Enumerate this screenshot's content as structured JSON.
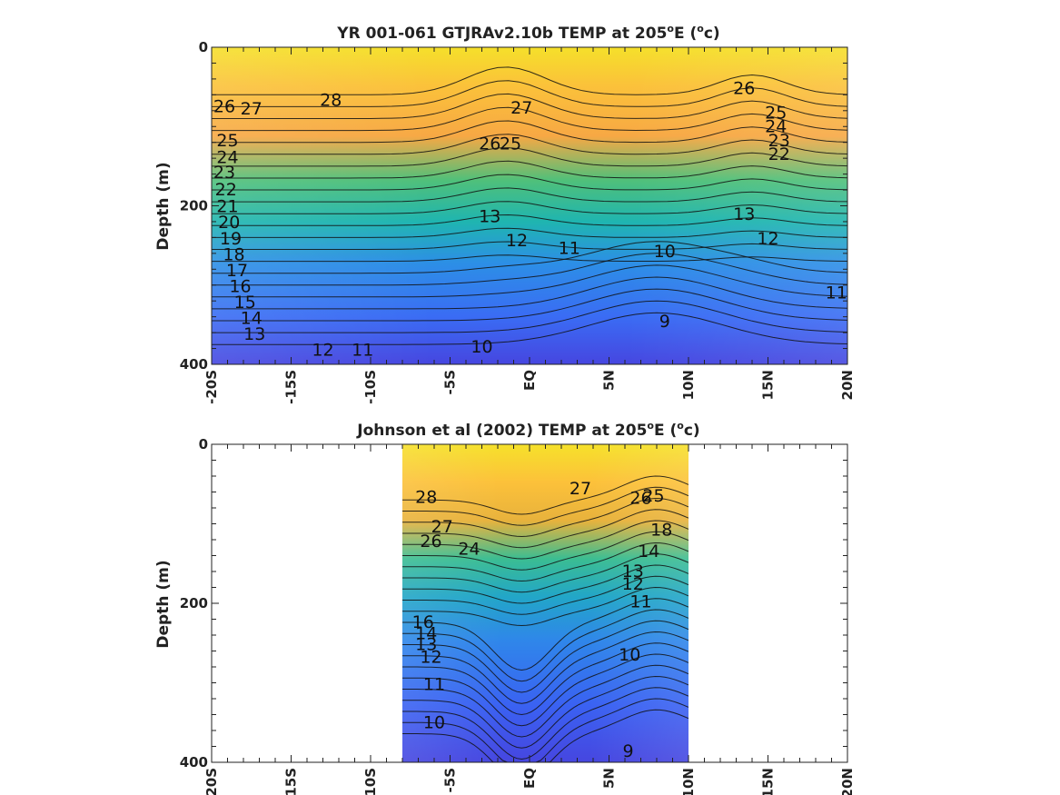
{
  "chart_data": [
    {
      "type": "heatmap",
      "subtype": "filled-contour",
      "title": "YR 001-061 GTJRAv2.10b TEMP at 205",
      "title_sup1": "o",
      "title_mid": "E (",
      "title_sup2": "o",
      "title_end": "c)",
      "ylabel": "Depth (m)",
      "xlim": [
        -20,
        20
      ],
      "ylim": [
        0,
        400
      ],
      "x_ticks": [
        -20,
        -15,
        -10,
        -5,
        0,
        5,
        10,
        15,
        20
      ],
      "x_tick_labels": [
        "-20S",
        "-15S",
        "-10S",
        "-5S",
        "EQ",
        "5N",
        "10N",
        "15N",
        "20N"
      ],
      "y_ticks": [
        0,
        200,
        400
      ],
      "y_tick_labels": [
        "0",
        "200",
        "400"
      ],
      "colormap": "parula",
      "color_range": [
        8,
        30
      ],
      "data_extent": [
        -20,
        20
      ],
      "contour_labels": [
        {
          "text": "26",
          "x": -19.2,
          "y": 75
        },
        {
          "text": "27",
          "x": -17.5,
          "y": 78
        },
        {
          "text": "28",
          "x": -12.5,
          "y": 67
        },
        {
          "text": "27",
          "x": -0.5,
          "y": 77
        },
        {
          "text": "26",
          "x": 13.5,
          "y": 52
        },
        {
          "text": "25",
          "x": -19.0,
          "y": 118
        },
        {
          "text": "24",
          "x": -19.0,
          "y": 139
        },
        {
          "text": "23",
          "x": -19.2,
          "y": 158
        },
        {
          "text": "22",
          "x": -19.1,
          "y": 180
        },
        {
          "text": "21",
          "x": -19.0,
          "y": 201
        },
        {
          "text": "20",
          "x": -18.9,
          "y": 221
        },
        {
          "text": "19",
          "x": -18.8,
          "y": 242
        },
        {
          "text": "18",
          "x": -18.6,
          "y": 262
        },
        {
          "text": "17",
          "x": -18.4,
          "y": 282
        },
        {
          "text": "16",
          "x": -18.2,
          "y": 302
        },
        {
          "text": "15",
          "x": -17.9,
          "y": 322
        },
        {
          "text": "14",
          "x": -17.5,
          "y": 342
        },
        {
          "text": "13",
          "x": -17.3,
          "y": 362
        },
        {
          "text": "12",
          "x": -13.0,
          "y": 382
        },
        {
          "text": "11",
          "x": -10.5,
          "y": 382
        },
        {
          "text": "10",
          "x": -3.0,
          "y": 378
        },
        {
          "text": "9",
          "x": 8.5,
          "y": 346
        },
        {
          "text": "10",
          "x": 8.5,
          "y": 258
        },
        {
          "text": "11",
          "x": 2.5,
          "y": 254
        },
        {
          "text": "12",
          "x": -0.8,
          "y": 244
        },
        {
          "text": "13",
          "x": -2.5,
          "y": 214
        },
        {
          "text": "26",
          "x": -2.5,
          "y": 122
        },
        {
          "text": "25",
          "x": -1.2,
          "y": 122
        },
        {
          "text": "25",
          "x": 15.5,
          "y": 83
        },
        {
          "text": "24",
          "x": 15.5,
          "y": 100
        },
        {
          "text": "23",
          "x": 15.7,
          "y": 118
        },
        {
          "text": "22",
          "x": 15.7,
          "y": 135
        },
        {
          "text": "12",
          "x": 15.0,
          "y": 242
        },
        {
          "text": "11",
          "x": 19.3,
          "y": 310
        },
        {
          "text": "13",
          "x": 13.5,
          "y": 211
        }
      ]
    },
    {
      "type": "heatmap",
      "subtype": "filled-contour",
      "title": "Johnson et al (2002) TEMP at 205",
      "title_sup1": "o",
      "title_mid": "E (",
      "title_sup2": "o",
      "title_end": "c)",
      "ylabel": "Depth (m)",
      "xlim": [
        -20,
        20
      ],
      "ylim": [
        0,
        400
      ],
      "x_ticks": [
        -20,
        -15,
        -10,
        -5,
        0,
        5,
        10,
        15,
        20
      ],
      "x_tick_labels": [
        "-20S",
        "-15S",
        "-10S",
        "-5S",
        "EQ",
        "5N",
        "10N",
        "15N",
        "20N"
      ],
      "y_ticks": [
        0,
        200,
        400
      ],
      "y_tick_labels": [
        "0",
        "200",
        "400"
      ],
      "colormap": "parula",
      "color_range": [
        8,
        30
      ],
      "data_extent": [
        -8,
        10
      ],
      "contour_labels": [
        {
          "text": "28",
          "x": -6.5,
          "y": 67
        },
        {
          "text": "27",
          "x": -5.5,
          "y": 104
        },
        {
          "text": "26",
          "x": -6.2,
          "y": 122
        },
        {
          "text": "27",
          "x": 3.2,
          "y": 56
        },
        {
          "text": "26",
          "x": 7.0,
          "y": 68
        },
        {
          "text": "25",
          "x": 7.8,
          "y": 65
        },
        {
          "text": "24",
          "x": -3.8,
          "y": 132
        },
        {
          "text": "16",
          "x": -6.7,
          "y": 224
        },
        {
          "text": "14",
          "x": -6.5,
          "y": 238
        },
        {
          "text": "13",
          "x": -6.5,
          "y": 252
        },
        {
          "text": "12",
          "x": -6.2,
          "y": 268
        },
        {
          "text": "11",
          "x": -6.0,
          "y": 302
        },
        {
          "text": "10",
          "x": -6.0,
          "y": 350
        },
        {
          "text": "11",
          "x": 7.0,
          "y": 198
        },
        {
          "text": "12",
          "x": 6.5,
          "y": 176
        },
        {
          "text": "13",
          "x": 6.5,
          "y": 160
        },
        {
          "text": "10",
          "x": 6.3,
          "y": 265
        },
        {
          "text": "9",
          "x": 6.2,
          "y": 386
        },
        {
          "text": "14",
          "x": 7.5,
          "y": 135
        },
        {
          "text": "18",
          "x": 8.3,
          "y": 108
        }
      ]
    }
  ]
}
